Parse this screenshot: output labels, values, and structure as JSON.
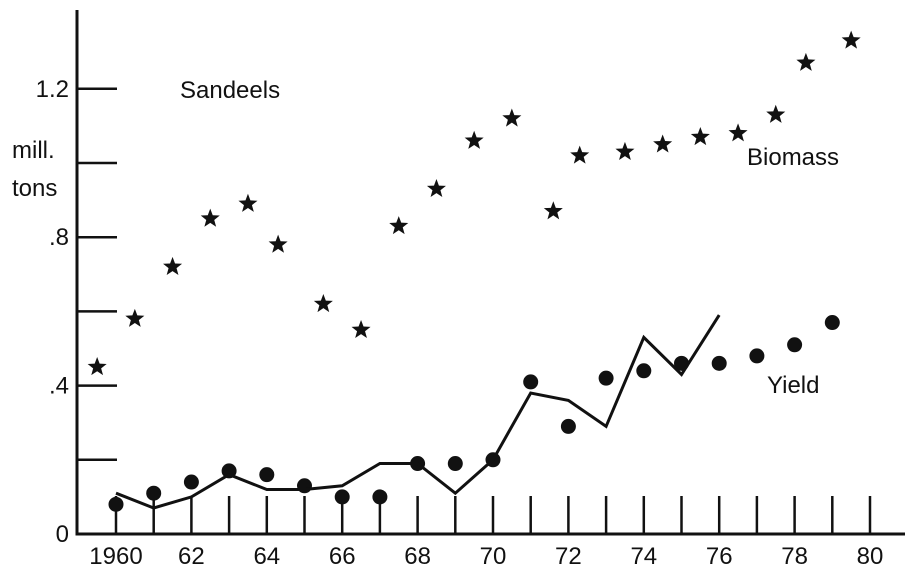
{
  "chart_data": {
    "type": "scatter",
    "title": "",
    "ylabel": "mill. tons",
    "ylabel_lines": [
      "mill.",
      "tons"
    ],
    "xlim": [
      1959.5,
      1980.8
    ],
    "ylim": [
      0,
      1.4
    ],
    "x_ticks": [
      1960,
      1961,
      1962,
      1963,
      1964,
      1965,
      1966,
      1967,
      1968,
      1969,
      1970,
      1971,
      1972,
      1973,
      1974,
      1975,
      1976,
      1977,
      1978,
      1979,
      1980
    ],
    "x_tick_labels": [
      {
        "x": 1960,
        "label": "1960"
      },
      {
        "x": 1962,
        "label": "62"
      },
      {
        "x": 1964,
        "label": "64"
      },
      {
        "x": 1966,
        "label": "66"
      },
      {
        "x": 1968,
        "label": "68"
      },
      {
        "x": 1970,
        "label": "70"
      },
      {
        "x": 1972,
        "label": "72"
      },
      {
        "x": 1974,
        "label": "74"
      },
      {
        "x": 1976,
        "label": "76"
      },
      {
        "x": 1978,
        "label": "78"
      },
      {
        "x": 1980,
        "label": "80"
      }
    ],
    "y_ticks": [
      0.2,
      0.4,
      0.6,
      0.8,
      1.0,
      1.2
    ],
    "y_tick_labels": [
      {
        "y": 0,
        "label": "0"
      },
      {
        "y": 0.4,
        "label": ".4"
      },
      {
        "y": 0.8,
        "label": ".8"
      },
      {
        "y": 1.2,
        "label": "1.2"
      }
    ],
    "annotations": [
      {
        "text": "Sandeels",
        "x": 1962.7,
        "y": 1.2
      },
      {
        "text": "Biomass",
        "x": 1977.0,
        "y": 1.0
      },
      {
        "text": "Yield",
        "x": 1976.6,
        "y": 0.4
      }
    ],
    "series": [
      {
        "name": "Biomass",
        "type": "scatter",
        "marker": "star",
        "x": [
          1959.5,
          1960.5,
          1961.5,
          1962.5,
          1963.5,
          1964.3,
          1965.5,
          1966.5,
          1967.5,
          1968.5,
          1969.5,
          1970.5,
          1971.6,
          1972.3,
          1973.5,
          1974.5,
          1975.5,
          1976.5,
          1977.5,
          1978.3,
          1979.5
        ],
        "y": [
          0.45,
          0.58,
          0.72,
          0.85,
          0.89,
          0.78,
          0.62,
          0.55,
          0.83,
          0.93,
          1.06,
          1.12,
          0.87,
          1.02,
          1.03,
          1.05,
          1.07,
          1.08,
          1.13,
          1.27,
          1.33
        ]
      },
      {
        "name": "Yield",
        "type": "scatter",
        "marker": "circle",
        "x": [
          1960,
          1961,
          1962,
          1963,
          1964,
          1965,
          1966,
          1967,
          1968,
          1969,
          1970,
          1971,
          1972,
          1973,
          1974,
          1975,
          1976,
          1977,
          1978,
          1979
        ],
        "y": [
          0.08,
          0.11,
          0.14,
          0.17,
          0.16,
          0.13,
          0.1,
          0.1,
          0.19,
          0.19,
          0.2,
          0.41,
          0.29,
          0.42,
          0.44,
          0.46,
          0.46,
          0.48,
          0.51,
          0.57
        ]
      },
      {
        "type": "line",
        "x": [
          1960,
          1961,
          1962,
          1963,
          1964,
          1965,
          1966,
          1967,
          1968,
          1969,
          1970,
          1971,
          1972,
          1973,
          1974,
          1975,
          1976
        ],
        "y": [
          0.11,
          0.07,
          0.1,
          0.16,
          0.12,
          0.12,
          0.13,
          0.19,
          0.19,
          0.11,
          0.2,
          0.38,
          0.36,
          0.29,
          0.53,
          0.43,
          0.59
        ]
      }
    ]
  }
}
